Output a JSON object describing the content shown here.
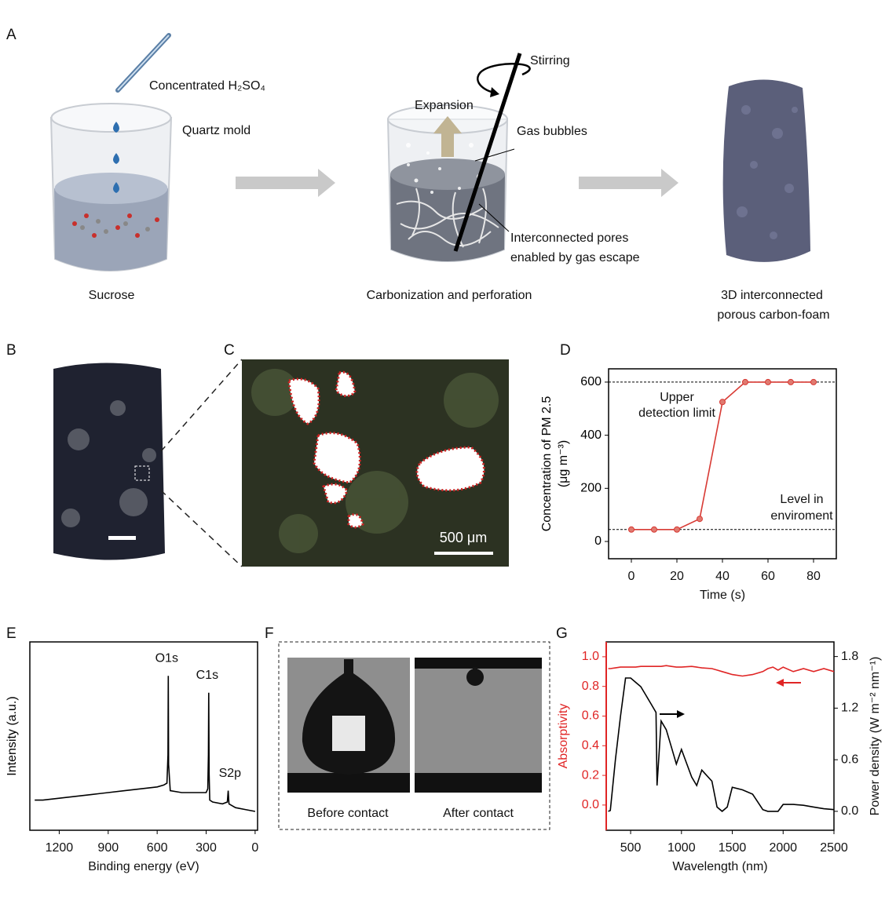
{
  "panel_labels": [
    "A",
    "B",
    "C",
    "D",
    "E",
    "F",
    "G"
  ],
  "panel_a": {
    "acid": "Concentrated H₂SO₄",
    "mold": "Quartz mold",
    "sucrose": "Sucrose",
    "stirring": "Stirring",
    "expansion": "Expansion",
    "bubbles": "Gas bubbles",
    "pores": [
      "Interconnected pores",
      "enabled by gas escape"
    ],
    "step2": "Carbonization and perforation",
    "product": [
      "3D interconnected",
      "porous carbon-foam"
    ]
  },
  "panel_c": {
    "scale_bar": "500 μm"
  },
  "panel_f": {
    "labels": [
      "Before contact",
      "After contact"
    ]
  },
  "chart_data": [
    {
      "type": "line",
      "xlabel": "Time (s)",
      "ylabel": [
        "Concentration of PM 2.5",
        "(μg m⁻³)"
      ],
      "x": [
        0,
        10,
        20,
        30,
        40,
        50,
        60,
        70,
        80
      ],
      "series": [
        {
          "color": "#d83a34",
          "values": [
            45,
            45,
            45,
            85,
            525,
            600,
            600,
            600,
            600
          ]
        }
      ],
      "markers": true,
      "xlim": [
        -10,
        90
      ],
      "ylim": [
        -65,
        650
      ],
      "xticks": [
        0,
        20,
        40,
        60,
        80
      ],
      "yticks": [
        0,
        200,
        400,
        600
      ],
      "hlines": [
        600,
        45
      ],
      "annotations": [
        "Upper",
        "detection limit",
        "Level in",
        "enviroment"
      ]
    },
    {
      "type": "line",
      "xlabel": "Binding energy (eV)",
      "ylabel": [
        "Intensity (a.u.)"
      ],
      "x": [
        1350,
        1300,
        1200,
        1100,
        1000,
        900,
        800,
        700,
        600,
        560,
        540,
        534,
        532,
        530,
        520,
        450,
        350,
        300,
        290,
        286,
        284,
        282,
        278,
        260,
        200,
        170,
        165,
        160,
        120,
        60,
        0
      ],
      "series": [
        {
          "color": "#000000",
          "values": [
            16,
            16,
            17,
            18,
            19,
            20,
            21,
            22,
            23,
            24,
            25,
            40,
            82,
            35,
            21,
            20,
            20,
            20,
            22,
            40,
            73,
            30,
            16,
            15,
            14,
            15,
            21,
            14,
            12,
            11,
            10
          ]
        }
      ],
      "xlim": [
        1380,
        -15
      ],
      "ylim": [
        0,
        100
      ],
      "xticks": [
        1200,
        900,
        600,
        300,
        0
      ],
      "peak_labels": [
        {
          "text": "O1s",
          "x": 532
        },
        {
          "text": "C1s",
          "x": 284
        },
        {
          "text": "S2p",
          "x": 165
        }
      ]
    },
    {
      "type": "line",
      "xlabel": "Wavelength (nm)",
      "ylabel": [
        "Absorptivity"
      ],
      "y2label": "Power density (W m⁻² nm⁻¹)",
      "x": [
        280,
        300,
        350,
        400,
        450,
        500,
        550,
        600,
        650,
        700,
        750,
        760,
        800,
        850,
        900,
        950,
        1000,
        1100,
        1150,
        1200,
        1300,
        1350,
        1400,
        1450,
        1500,
        1600,
        1700,
        1800,
        1850,
        1900,
        1950,
        2000,
        2100,
        2200,
        2300,
        2400,
        2500
      ],
      "series": [
        {
          "color": "#e02525",
          "values": [
            0.92,
            0.92,
            0.925,
            0.93,
            0.93,
            0.93,
            0.93,
            0.935,
            0.935,
            0.935,
            0.935,
            0.935,
            0.935,
            0.94,
            0.935,
            0.93,
            0.93,
            0.935,
            0.93,
            0.925,
            0.92,
            0.91,
            0.9,
            0.89,
            0.88,
            0.87,
            0.88,
            0.9,
            0.92,
            0.93,
            0.91,
            0.93,
            0.9,
            0.92,
            0.9,
            0.92,
            0.9
          ]
        },
        {
          "color": "#000000",
          "axis": "y2",
          "values": [
            0,
            0.01,
            0.6,
            1.1,
            1.55,
            1.55,
            1.5,
            1.45,
            1.35,
            1.25,
            1.15,
            0.3,
            1.05,
            0.95,
            0.75,
            0.55,
            0.72,
            0.4,
            0.3,
            0.48,
            0.35,
            0.05,
            0,
            0.05,
            0.28,
            0.25,
            0.2,
            0.02,
            0,
            0,
            0,
            0.08,
            0.08,
            0.07,
            0.05,
            0.03,
            0.02
          ]
        }
      ],
      "xlim": [
        260,
        2500
      ],
      "ylim": [
        -0.17,
        1.1
      ],
      "y2lim": [
        -0.22,
        1.97
      ],
      "xticks": [
        500,
        1000,
        1500,
        2000,
        2500
      ],
      "yticks": [
        {
          "value": 0,
          "label": "0.0"
        },
        0.2,
        0.4,
        0.6,
        0.8,
        {
          "value": 1,
          "label": "1.0"
        }
      ],
      "y2ticks": [
        {
          "value": 0,
          "label": "0.0"
        },
        0.6,
        1.2,
        1.8
      ]
    }
  ]
}
